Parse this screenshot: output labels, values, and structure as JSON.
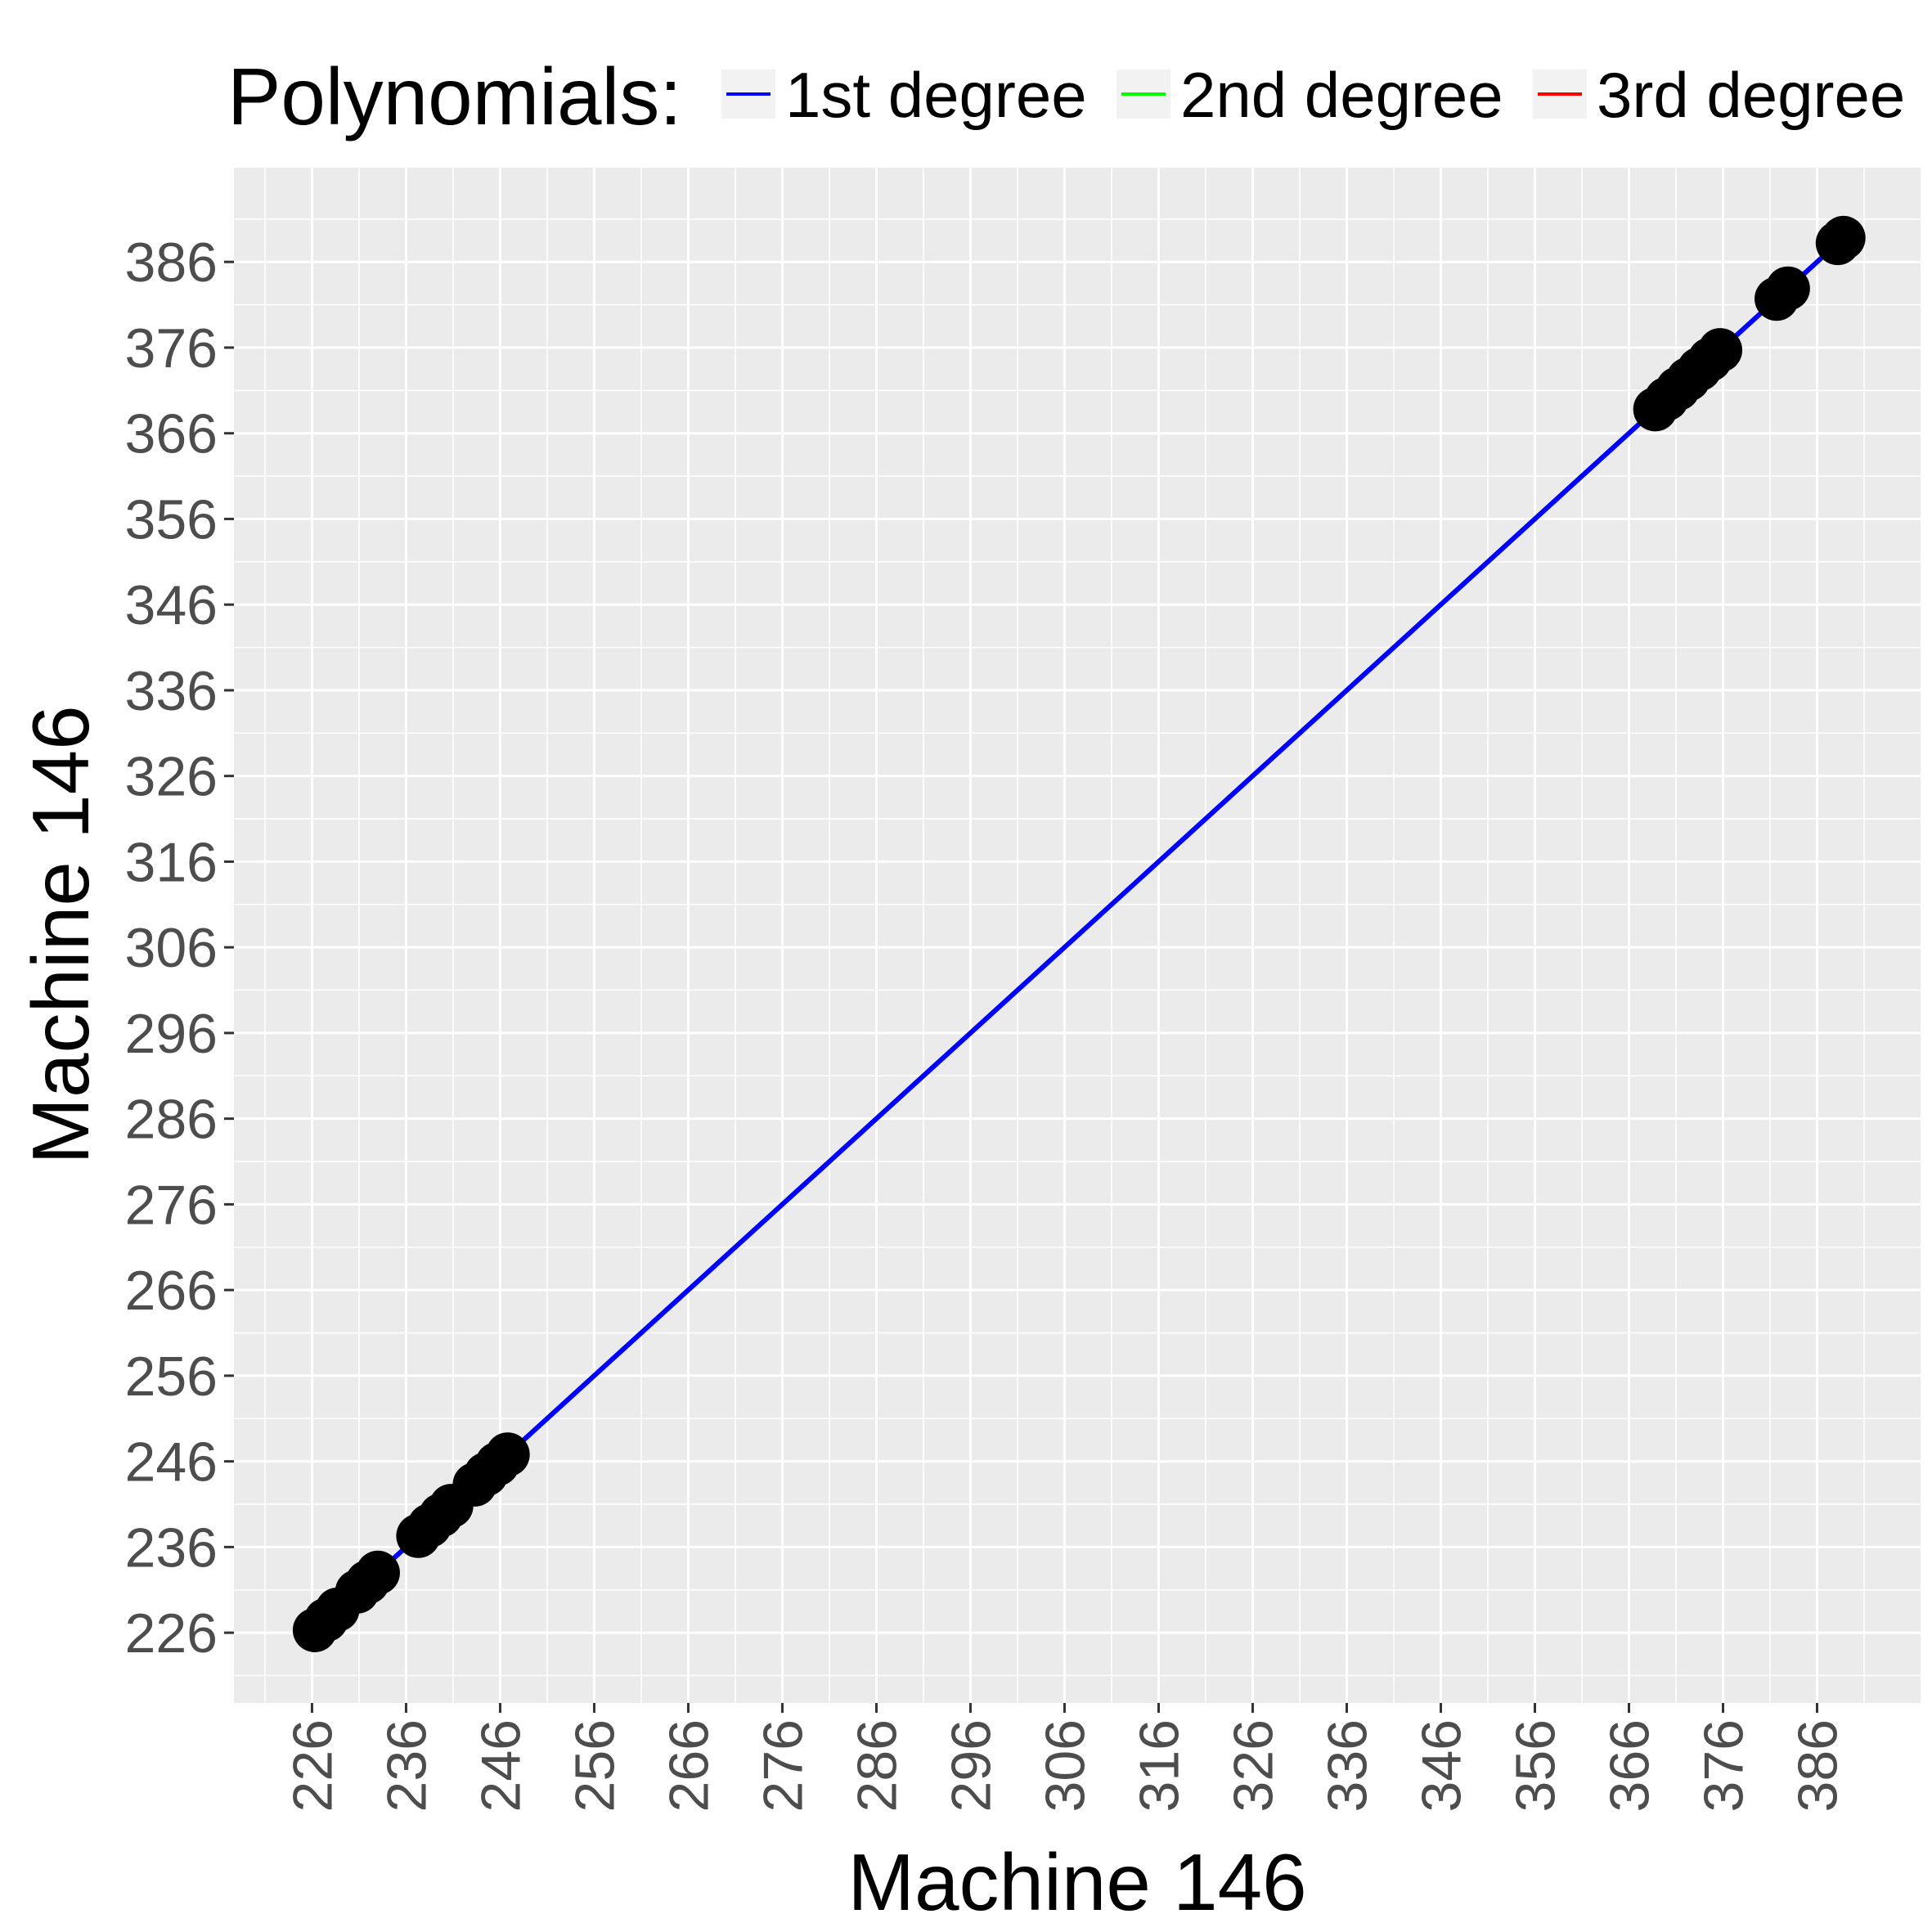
{
  "chart_data": {
    "type": "scatter",
    "title": "",
    "xlabel": "Machine 146",
    "ylabel": "Machine 146",
    "xlim": [
      217.7,
      397
    ],
    "ylim": [
      217.8,
      397
    ],
    "x_ticks": [
      226,
      236,
      246,
      256,
      266,
      276,
      286,
      296,
      306,
      316,
      326,
      336,
      346,
      356,
      366,
      376,
      386
    ],
    "y_ticks": [
      226,
      236,
      246,
      256,
      266,
      276,
      286,
      296,
      306,
      316,
      326,
      336,
      346,
      356,
      366,
      376,
      386
    ],
    "grid": true,
    "legend": {
      "title": "Polynomials:",
      "position": "top",
      "entries": [
        {
          "label": "1st degree",
          "color": "#0000ff"
        },
        {
          "label": "2nd degree",
          "color": "#00ff00"
        },
        {
          "label": "3rd degree",
          "color": "#ff0000"
        }
      ]
    },
    "points": {
      "color": "#000000",
      "x": [
        226.3,
        227.5,
        228.7,
        230.8,
        231.9,
        233.0,
        237.3,
        238.5,
        239.7,
        240.8,
        243.3,
        244.5,
        245.7,
        246.8,
        368.8,
        370.0,
        371.2,
        372.3,
        373.5,
        374.6,
        375.7,
        381.7,
        382.9,
        388.2,
        388.8
      ],
      "y": [
        226.3,
        227.5,
        228.7,
        230.8,
        231.9,
        233.0,
        237.3,
        238.5,
        239.7,
        240.8,
        243.3,
        244.5,
        245.7,
        246.8,
        368.8,
        370.0,
        371.2,
        372.3,
        373.5,
        374.6,
        375.7,
        381.7,
        382.9,
        388.2,
        388.8
      ]
    },
    "series": [
      {
        "name": "1st degree",
        "color": "#0000ff",
        "x": [
          226.3,
          388.8
        ],
        "y": [
          226.3,
          388.8
        ]
      }
    ]
  }
}
